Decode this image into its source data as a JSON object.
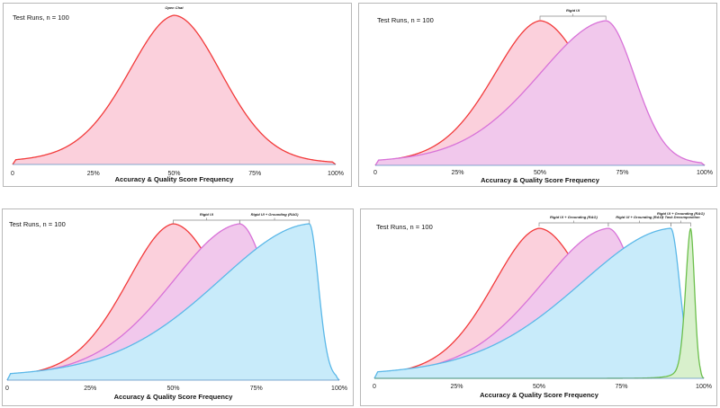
{
  "chart_data": [
    {
      "type": "area",
      "title": "",
      "annotation": "Test Runs, n = 100",
      "xlabel": "Accuracy & Quality Score Frequency",
      "ylabel": "",
      "x_ticks": [
        "0",
        "25%",
        "50%",
        "75%",
        "100%"
      ],
      "xlim": [
        0,
        100
      ],
      "series": [
        {
          "name": "Open Chat",
          "peak": 50,
          "spread_left": 15,
          "spread_right": 15,
          "height": 1.0,
          "stroke": "#f23a3a",
          "fill": "#fbd0dc"
        }
      ],
      "brackets": [
        {
          "label": "Open Chat",
          "from": 50,
          "to": 50
        }
      ]
    },
    {
      "type": "area",
      "title": "",
      "annotation": "Test Runs, n = 100",
      "xlabel": "Accuracy & Quality Score Frequency",
      "ylabel": "",
      "x_ticks": [
        "0",
        "25%",
        "50%",
        "75%",
        "100%"
      ],
      "xlim": [
        0,
        100
      ],
      "series": [
        {
          "name": "Open Chat",
          "peak": 50,
          "spread_left": 15,
          "spread_right": 15,
          "height": 1.0,
          "stroke": "#f23a3a",
          "fill": "#fbd0dc"
        },
        {
          "name": "Rigid UI",
          "peak": 70,
          "spread_left": 22,
          "spread_right": 9,
          "height": 1.0,
          "stroke": "#d872d8",
          "fill": "#f1c8ec"
        }
      ],
      "brackets": [
        {
          "label": "Rigid UI",
          "from": 50,
          "to": 70
        }
      ]
    },
    {
      "type": "area",
      "title": "",
      "annotation": "Test Runs, n = 100",
      "xlabel": "Accuracy & Quality Score Frequency",
      "ylabel": "",
      "x_ticks": [
        "0",
        "25%",
        "50%",
        "75%",
        "100%"
      ],
      "xlim": [
        0,
        100
      ],
      "series": [
        {
          "name": "Open Chat",
          "peak": 50,
          "spread_left": 15,
          "spread_right": 15,
          "height": 1.0,
          "stroke": "#f23a3a",
          "fill": "#fbd0dc"
        },
        {
          "name": "Rigid UI",
          "peak": 70,
          "spread_left": 22,
          "spread_right": 9,
          "height": 1.0,
          "stroke": "#d872d8",
          "fill": "#f1c8ec"
        },
        {
          "name": "Rigid UI + Grounding (RAG)",
          "peak": 91,
          "spread_left": 30,
          "spread_right": 2.8,
          "height": 1.0,
          "stroke": "#5bb8e8",
          "fill": "#c8ebfa"
        }
      ],
      "brackets": [
        {
          "label": "Rigid UI",
          "from": 50,
          "to": 70
        },
        {
          "label": "Rigid UI + Grounding (RAG)",
          "from": 70,
          "to": 91
        }
      ]
    },
    {
      "type": "area",
      "title": "",
      "annotation": "Test Runs, n = 100",
      "xlabel": "Accuracy & Quality Score Frequency",
      "ylabel": "",
      "x_ticks": [
        "0",
        "25%",
        "50%",
        "75%",
        "100%"
      ],
      "xlim": [
        0,
        100
      ],
      "series": [
        {
          "name": "Open Chat",
          "peak": 50,
          "spread_left": 15,
          "spread_right": 15,
          "height": 1.0,
          "stroke": "#f23a3a",
          "fill": "#fbd0dc"
        },
        {
          "name": "Rigid UI",
          "peak": 71,
          "spread_left": 22,
          "spread_right": 9,
          "height": 1.0,
          "stroke": "#d872d8",
          "fill": "#f1c8ec"
        },
        {
          "name": "Rigid UI + Grounding (RAG)",
          "peak": 90,
          "spread_left": 30,
          "spread_right": 2.8,
          "height": 1.0,
          "stroke": "#5bb8e8",
          "fill": "#c8ebfa"
        },
        {
          "name": "Rigid UI + Grounding (RAG) + Task Decomposition",
          "peak": 96,
          "spread_left": 1.6,
          "spread_right": 1.2,
          "height": 1.0,
          "stroke": "#6cbf4c",
          "fill": "#d8f0cc"
        }
      ],
      "brackets": [
        {
          "label": "Rigid UI + Grounding (RAG)",
          "from": 50,
          "to": 71
        },
        {
          "label": "Rigid UI + Grounding (RAG)",
          "from": 71,
          "to": 90
        },
        {
          "label": "Rigid UI + Grounding (RAG)",
          "label2": "+ Task Decomposition",
          "from": 90,
          "to": 96
        }
      ]
    }
  ]
}
